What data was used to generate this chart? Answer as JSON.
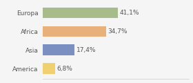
{
  "categories": [
    "Europa",
    "Africa",
    "Asia",
    "America"
  ],
  "values": [
    41.1,
    34.7,
    17.4,
    6.8
  ],
  "labels": [
    "41,1%",
    "34,7%",
    "17,4%",
    "6,8%"
  ],
  "bar_colors": [
    "#a8bb8a",
    "#e8b07a",
    "#7b8fc0",
    "#f0d070"
  ],
  "background_color": "#f5f5f5",
  "label_fontsize": 6.5,
  "category_fontsize": 6.5,
  "xlim": [
    0,
    80
  ]
}
